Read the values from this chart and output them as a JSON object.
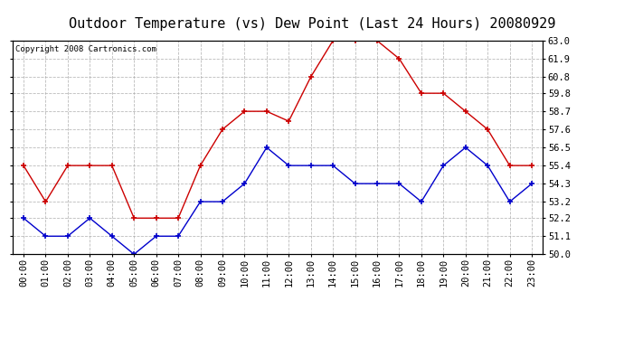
{
  "title": "Outdoor Temperature (vs) Dew Point (Last 24 Hours) 20080929",
  "copyright": "Copyright 2008 Cartronics.com",
  "hours": [
    "00:00",
    "01:00",
    "02:00",
    "03:00",
    "04:00",
    "05:00",
    "06:00",
    "07:00",
    "08:00",
    "09:00",
    "10:00",
    "11:00",
    "12:00",
    "13:00",
    "14:00",
    "15:00",
    "16:00",
    "17:00",
    "18:00",
    "19:00",
    "20:00",
    "21:00",
    "22:00",
    "23:00"
  ],
  "temp": [
    55.4,
    53.2,
    55.4,
    55.4,
    55.4,
    52.2,
    52.2,
    52.2,
    55.4,
    57.6,
    58.7,
    58.7,
    58.1,
    60.8,
    63.0,
    63.0,
    63.0,
    61.9,
    59.8,
    59.8,
    58.7,
    57.6,
    55.4,
    55.4
  ],
  "dew": [
    52.2,
    51.1,
    51.1,
    52.2,
    51.1,
    50.0,
    51.1,
    51.1,
    53.2,
    53.2,
    54.3,
    56.5,
    55.4,
    55.4,
    55.4,
    54.3,
    54.3,
    54.3,
    53.2,
    55.4,
    56.5,
    55.4,
    53.2,
    54.3
  ],
  "temp_color": "#cc0000",
  "dew_color": "#0000cc",
  "bg_color": "#ffffff",
  "grid_color": "#aaaaaa",
  "ylim_min": 50.0,
  "ylim_max": 63.0,
  "yticks": [
    50.0,
    51.1,
    52.2,
    53.2,
    54.3,
    55.4,
    56.5,
    57.6,
    58.7,
    59.8,
    60.8,
    61.9,
    63.0
  ],
  "title_fontsize": 11,
  "copyright_fontsize": 6.5,
  "tick_fontsize": 7.5,
  "marker": "+"
}
